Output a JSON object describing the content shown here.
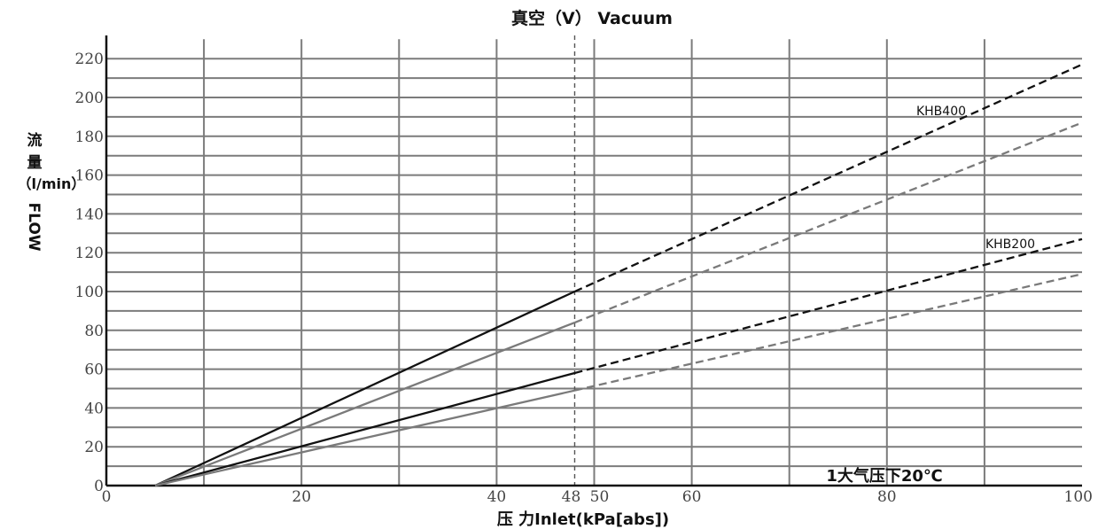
{
  "chart_data": {
    "type": "line",
    "title": "真空（V） Vacuum",
    "xlabel": "压 力Inlet(kPa[abs])",
    "ylabel_cn_1": "流",
    "ylabel_cn_2": "量",
    "ylabel_unit": "（l/min）",
    "ylabel_en": "FLOW",
    "annotation": "1大气压下20℃",
    "xlim": [
      0,
      100
    ],
    "ylim": [
      0,
      230
    ],
    "x_ticks": [
      0,
      20,
      40,
      48,
      50,
      60,
      80,
      100
    ],
    "y_ticks": [
      0,
      20,
      40,
      60,
      80,
      100,
      120,
      140,
      160,
      180,
      200,
      220
    ],
    "vertical_marker_x": 48,
    "grid": true,
    "series": [
      {
        "name": "KHB400",
        "color": "#111111",
        "x": [
          5,
          48,
          100
        ],
        "y": [
          0,
          100,
          217
        ]
      },
      {
        "color": "#7a7a7a",
        "x": [
          5,
          48,
          100
        ],
        "y": [
          0,
          84,
          187
        ]
      },
      {
        "name": "KHB200",
        "color": "#111111",
        "x": [
          5,
          48,
          100
        ],
        "y": [
          0,
          58,
          127
        ]
      },
      {
        "color": "#7a7a7a",
        "x": [
          5,
          48,
          100
        ],
        "y": [
          0,
          49,
          109
        ]
      }
    ]
  }
}
